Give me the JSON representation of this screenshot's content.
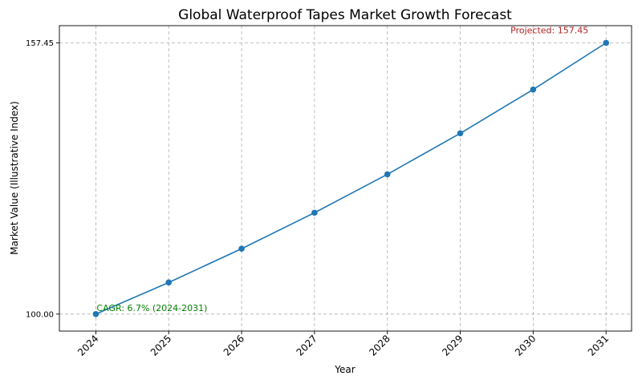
{
  "chart_data": {
    "type": "line",
    "title": "Global Waterproof Tapes Market Growth Forecast",
    "xlabel": "Year",
    "ylabel": "Market Value (Illustrative Index)",
    "x": [
      2024,
      2025,
      2026,
      2027,
      2028,
      2029,
      2030,
      2031
    ],
    "x_tick_labels": [
      "2024",
      "2025",
      "2026",
      "2027",
      "2028",
      "2029",
      "2030",
      "2031"
    ],
    "y_tick_values": [
      100.0,
      157.45
    ],
    "y_tick_labels": [
      "100.00",
      "157.45"
    ],
    "xlim": [
      2023.5,
      2031.35
    ],
    "ylim": [
      96.4,
      161.1
    ],
    "grid": true,
    "series": [
      {
        "values": [
          100.0,
          106.7,
          113.85,
          121.47,
          129.61,
          138.3,
          147.57,
          157.45
        ],
        "color": "#1f77b4"
      }
    ],
    "annotations": [
      {
        "text": "CAGR: 6.7% (2024-2031)",
        "x": 2024,
        "y": 100.0,
        "color": "#008000"
      },
      {
        "text": "Projected: 157.45",
        "x": 2031,
        "y": 157.45,
        "color": "#b22222"
      }
    ]
  }
}
